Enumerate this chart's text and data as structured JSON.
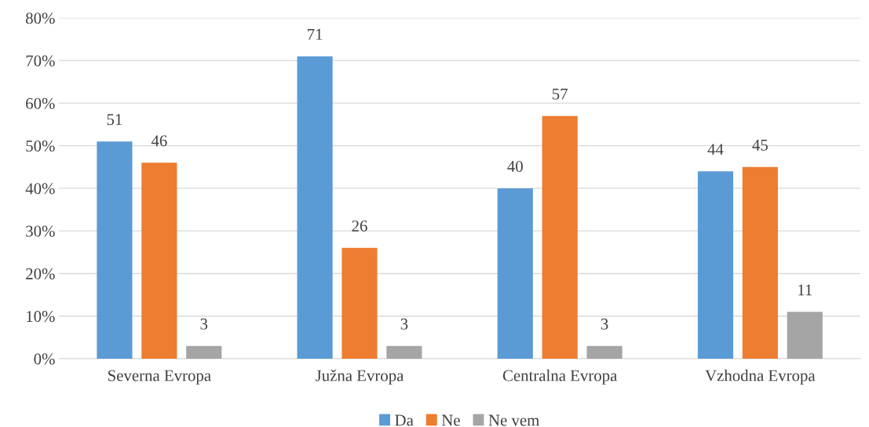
{
  "chart_data": {
    "type": "bar",
    "categories": [
      "Severna Evropa",
      "Južna Evropa",
      "Centralna Evropa",
      "Vzhodna Evropa"
    ],
    "series": [
      {
        "name": "Da",
        "color": "#5b9bd5",
        "values": [
          51,
          71,
          40,
          44
        ]
      },
      {
        "name": "Ne",
        "color": "#ed7d31",
        "values": [
          46,
          26,
          57,
          45
        ]
      },
      {
        "name": "Ne vem",
        "color": "#a5a5a5",
        "values": [
          3,
          3,
          3,
          11
        ]
      }
    ],
    "ylim": [
      0,
      80
    ],
    "yticks": [
      {
        "value": 0,
        "label": "0%"
      },
      {
        "value": 10,
        "label": "10%"
      },
      {
        "value": 20,
        "label": "20%"
      },
      {
        "value": 30,
        "label": "30%"
      },
      {
        "value": 40,
        "label": "40%"
      },
      {
        "value": 50,
        "label": "50%"
      },
      {
        "value": 60,
        "label": "60%"
      },
      {
        "value": 70,
        "label": "70%"
      },
      {
        "value": 80,
        "label": "80%"
      }
    ],
    "grid": "y",
    "legend": "bottom",
    "data_labels": true
  }
}
